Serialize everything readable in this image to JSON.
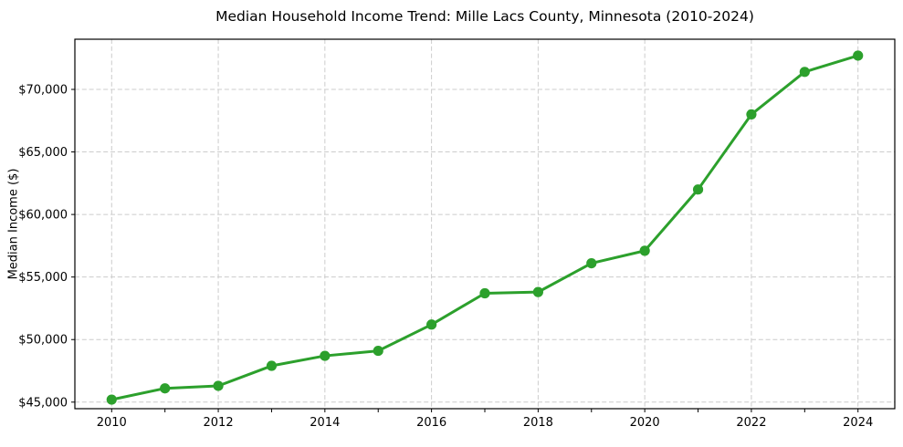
{
  "chart_data": {
    "type": "line",
    "title": "Median Household Income Trend: Mille Lacs County, Minnesota (2010-2024)",
    "xlabel": "",
    "ylabel": "Median Income ($)",
    "x": [
      2010,
      2011,
      2012,
      2013,
      2014,
      2015,
      2016,
      2017,
      2018,
      2019,
      2020,
      2021,
      2022,
      2023,
      2024
    ],
    "values": [
      45200,
      46100,
      46300,
      47900,
      48700,
      49100,
      51200,
      53700,
      53800,
      56100,
      57100,
      62000,
      68000,
      71400,
      72700
    ],
    "series_name": "Median Household Income",
    "line_color": "#2ca02c",
    "marker": "circle",
    "marker_color": "#2ca02c",
    "grid": true,
    "grid_color": "#cccccc",
    "grid_style": "dashed",
    "axis_border_color": "#000000",
    "background_color": "#ffffff",
    "legend": null,
    "xlim": [
      2009.31,
      2024.69
    ],
    "ylim": [
      44475,
      74010
    ],
    "xticks": [
      2010,
      2012,
      2014,
      2016,
      2018,
      2020,
      2022,
      2024
    ],
    "xtick_labels": [
      "2010",
      "2012",
      "2014",
      "2016",
      "2018",
      "2020",
      "2022",
      "2024"
    ],
    "yticks": [
      45000,
      50000,
      55000,
      60000,
      65000,
      70000
    ],
    "ytick_labels": [
      "$45,000",
      "$50,000",
      "$55,000",
      "$60,000",
      "$65,000",
      "$70,000"
    ]
  }
}
